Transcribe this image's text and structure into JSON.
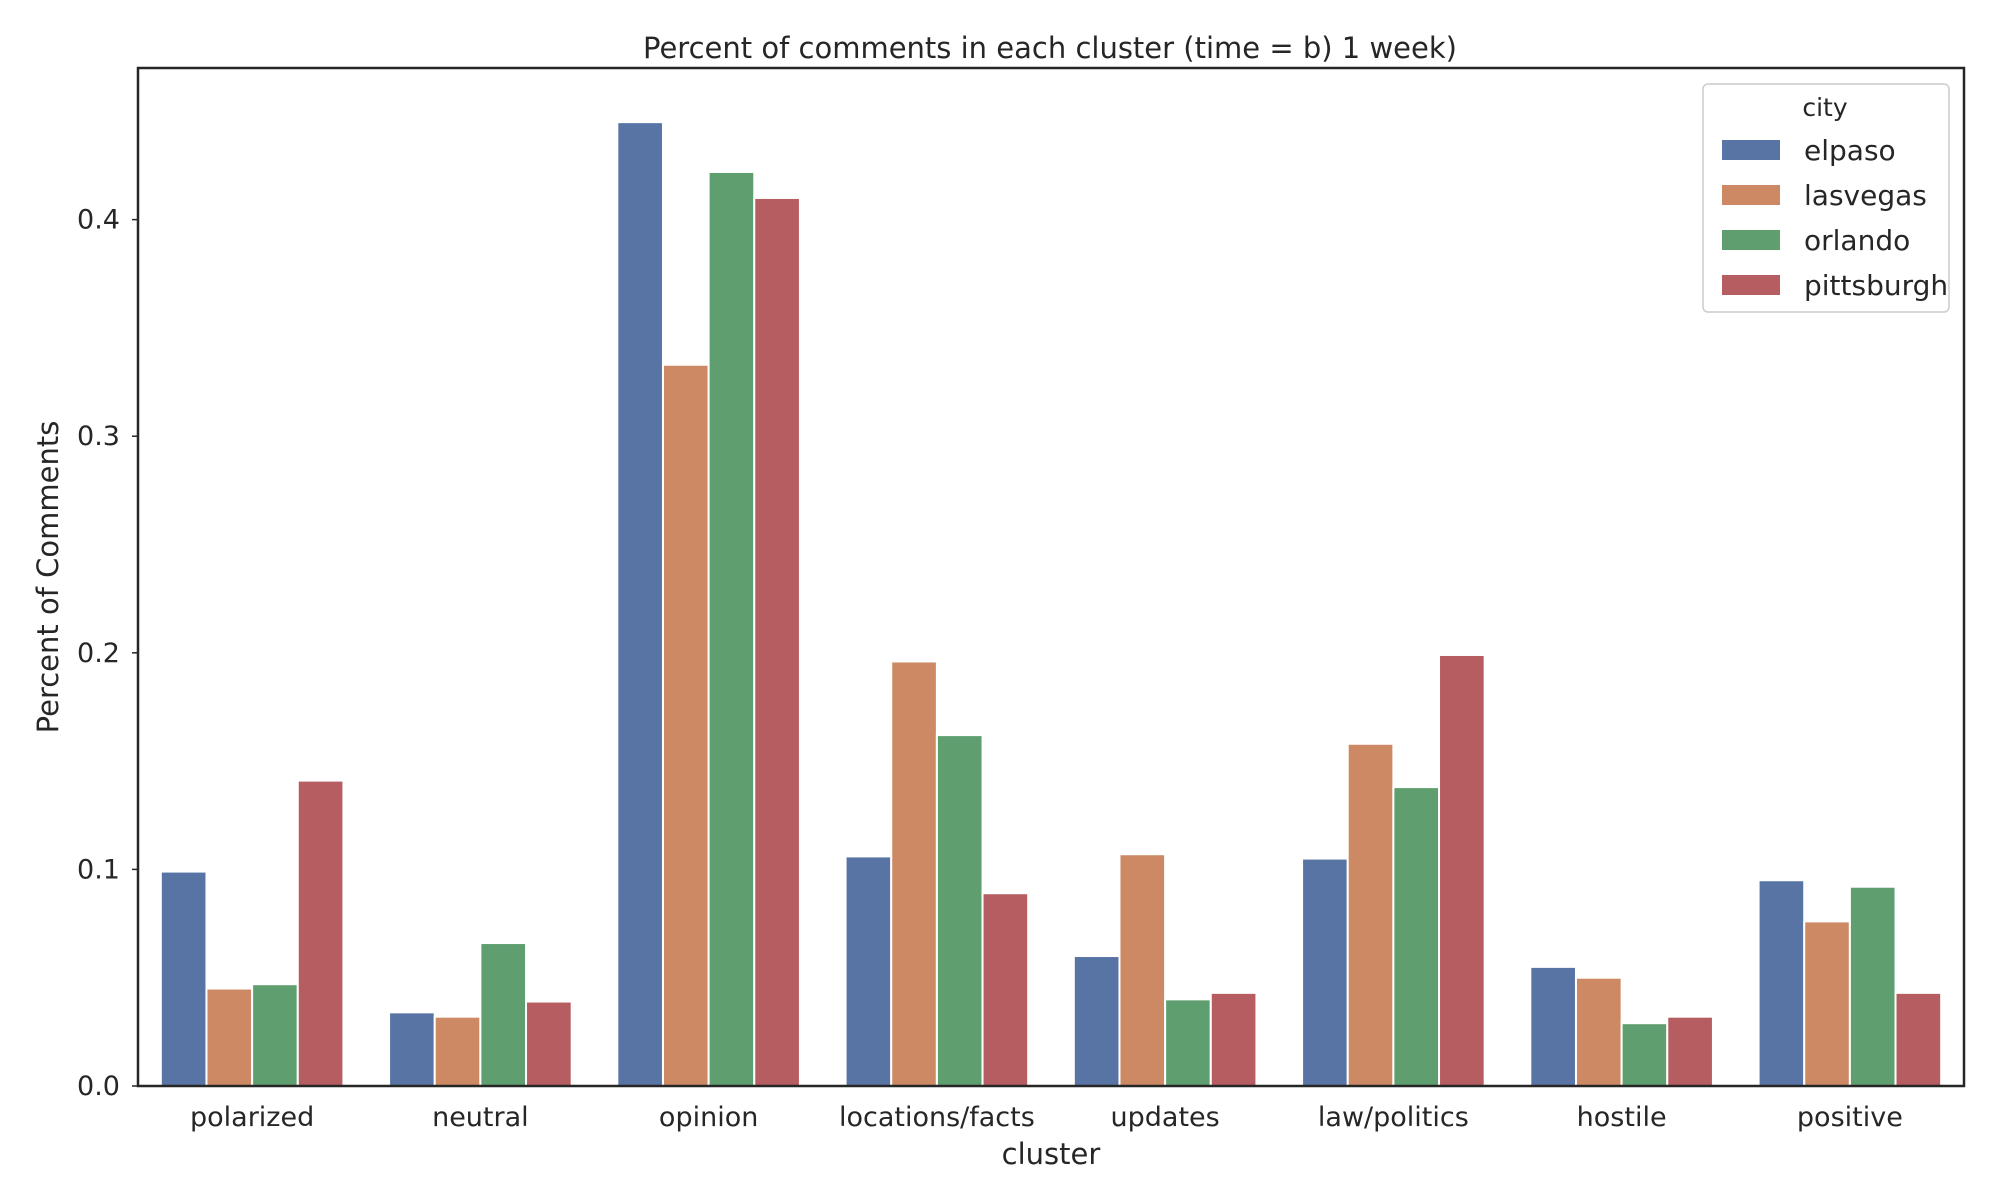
{
  "chart_data": {
    "type": "bar",
    "title": "Percent of comments in each cluster (time = b) 1 week)",
    "xlabel": "cluster",
    "ylabel": "Percent of Comments",
    "categories": [
      "polarized",
      "neutral",
      "opinion",
      "locations/facts",
      "updates",
      "law/politics",
      "hostile",
      "positive"
    ],
    "ylim": [
      0,
      0.47
    ],
    "yticks": [
      0.0,
      0.1,
      0.2,
      0.3,
      0.4
    ],
    "ytick_labels": [
      "0.0",
      "0.1",
      "0.2",
      "0.3",
      "0.4"
    ],
    "grid": false,
    "legend": {
      "title": "city",
      "position": "top-right"
    },
    "series": [
      {
        "name": "elpaso",
        "color": "#5874a5",
        "values": [
          0.099,
          0.034,
          0.445,
          0.106,
          0.06,
          0.105,
          0.055,
          0.095
        ]
      },
      {
        "name": "lasvegas",
        "color": "#cc8963",
        "values": [
          0.045,
          0.032,
          0.333,
          0.196,
          0.107,
          0.158,
          0.05,
          0.076
        ]
      },
      {
        "name": "orlando",
        "color": "#5f9e6e",
        "values": [
          0.047,
          0.066,
          0.422,
          0.162,
          0.04,
          0.138,
          0.029,
          0.092
        ]
      },
      {
        "name": "pittsburgh",
        "color": "#b55d60",
        "values": [
          0.141,
          0.039,
          0.41,
          0.089,
          0.043,
          0.199,
          0.032,
          0.043
        ]
      }
    ]
  }
}
